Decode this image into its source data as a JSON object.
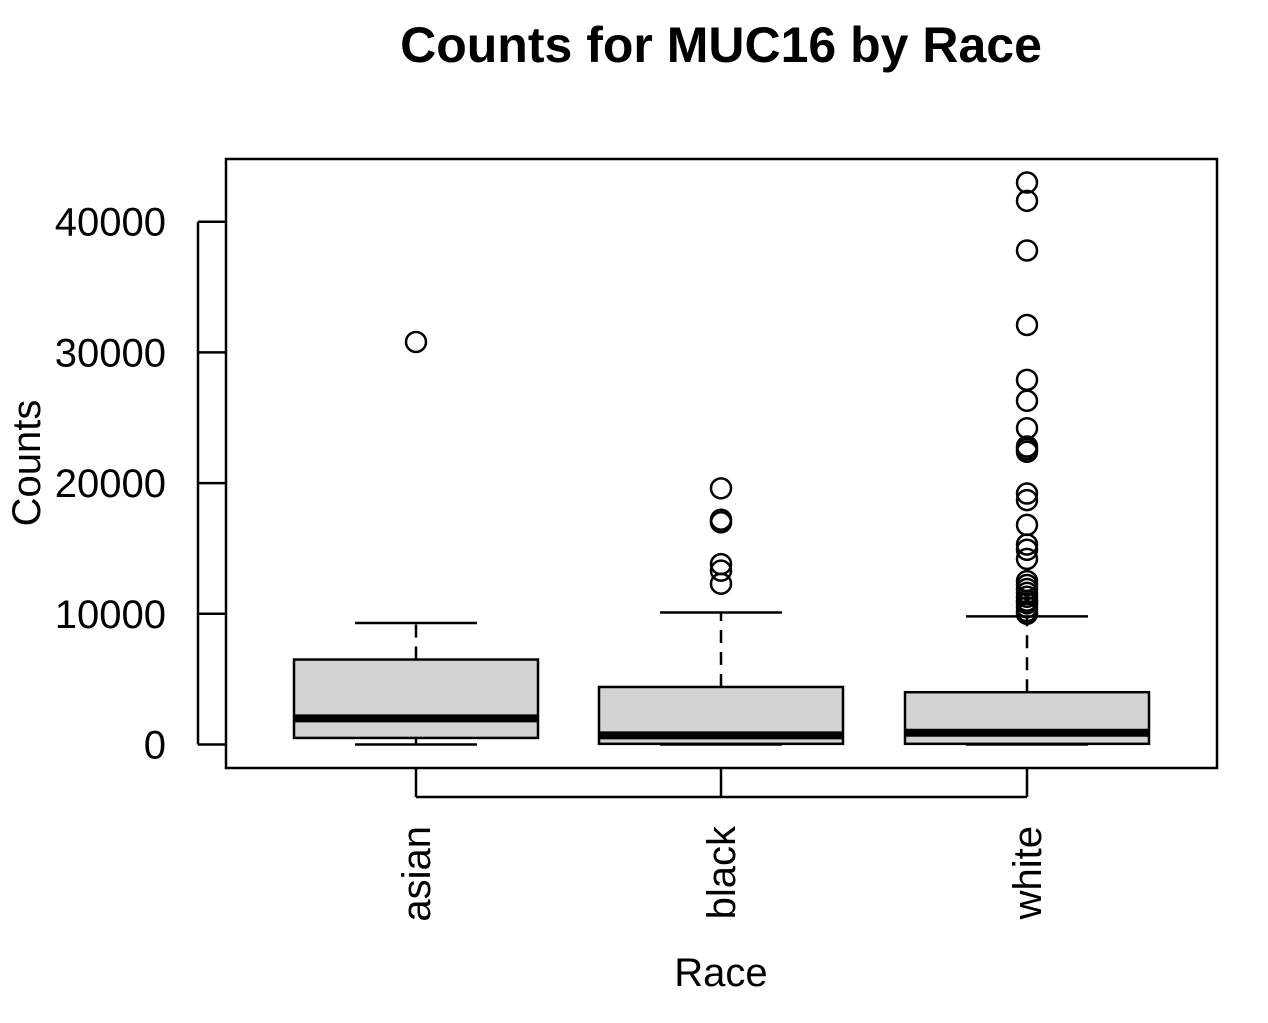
{
  "chart_data": {
    "type": "box",
    "title": "Counts for MUC16 by Race",
    "xlabel": "Race",
    "ylabel": "Counts",
    "ylim": [
      -1800,
      44800
    ],
    "yticks": [
      0,
      10000,
      20000,
      30000,
      40000
    ],
    "ytick_labels": [
      "0",
      "10000",
      "20000",
      "30000",
      "40000"
    ],
    "categories": [
      "asian",
      "black",
      "white"
    ],
    "grid": false,
    "legend": "none",
    "box_fill": "#d3d3d3",
    "line_color": "#000000",
    "boxes": [
      {
        "category": "asian",
        "whisker_low": 0,
        "q1": 500,
        "median": 2000,
        "q3": 6500,
        "whisker_high": 9300,
        "outliers": [
          30800
        ]
      },
      {
        "category": "black",
        "whisker_low": 0,
        "q1": 50,
        "median": 700,
        "q3": 4400,
        "whisker_high": 10100,
        "outliers": [
          12300,
          13300,
          13800,
          17000,
          17200,
          19600
        ]
      },
      {
        "category": "white",
        "whisker_low": 0,
        "q1": 50,
        "median": 900,
        "q3": 4000,
        "whisker_high": 9800,
        "outliers": [
          10000,
          10200,
          10500,
          10800,
          11000,
          11300,
          11600,
          11900,
          12200,
          12500,
          14200,
          14900,
          15300,
          16800,
          18700,
          19200,
          22400,
          22600,
          22800,
          24200,
          26300,
          27900,
          32100,
          37800,
          41600,
          43000
        ]
      }
    ]
  }
}
